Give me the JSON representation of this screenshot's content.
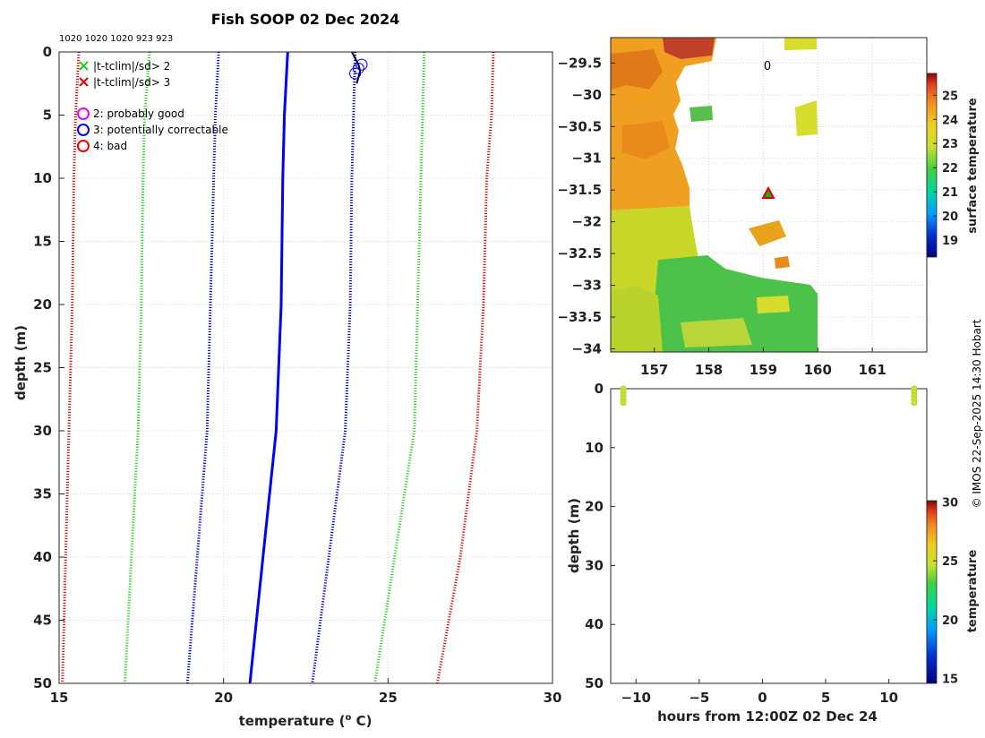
{
  "title": "Fish SOOP 02 Dec 2024",
  "copyright": "© IMOS 22-Sep-2025 14:30 Hobart",
  "chart_data": [
    {
      "id": "profile",
      "type": "line",
      "xlabel_main": "temperature (",
      "xlabel_sup": "o",
      "xlabel_tail": " C)",
      "ylabel": "depth (m)",
      "xlim": [
        15,
        30
      ],
      "ylim": [
        50,
        0
      ],
      "xticks": [
        15,
        20,
        25,
        30
      ],
      "yticks": [
        0,
        5,
        10,
        15,
        20,
        25,
        30,
        35,
        40,
        45,
        50
      ],
      "grid": true,
      "top_annotation": "1020 1020 1020 923 923",
      "legend": [
        {
          "label": "|t-tclim|/sd> 2",
          "marker": "x",
          "color": "#22cc22"
        },
        {
          "label": "|t-tclim|/sd> 3",
          "marker": "x",
          "color": "#dd0000"
        },
        {
          "label": "2: probably good",
          "marker": "o",
          "color": "#ee00ee"
        },
        {
          "label": "3: potentially correctable",
          "marker": "o",
          "color": "#0000ee"
        },
        {
          "label": "4: bad",
          "marker": "o",
          "color": "#ee0000"
        }
      ],
      "series": [
        {
          "name": "clim-3sd-low",
          "style": "dotted",
          "color": "#cc1111",
          "points": [
            [
              15.6,
              0
            ],
            [
              15.5,
              5
            ],
            [
              15.45,
              10
            ],
            [
              15.4,
              20
            ],
            [
              15.3,
              30
            ],
            [
              15.2,
              40
            ],
            [
              15.1,
              50
            ]
          ]
        },
        {
          "name": "clim-2sd-low",
          "style": "dotted",
          "color": "#33cc33",
          "points": [
            [
              17.75,
              0
            ],
            [
              17.6,
              5
            ],
            [
              17.55,
              10
            ],
            [
              17.5,
              20
            ],
            [
              17.4,
              30
            ],
            [
              17.2,
              40
            ],
            [
              17.0,
              50
            ]
          ]
        },
        {
          "name": "clim-1sd-low",
          "style": "dotted",
          "color": "#0000cc",
          "points": [
            [
              19.85,
              0
            ],
            [
              19.75,
              5
            ],
            [
              19.7,
              10
            ],
            [
              19.6,
              20
            ],
            [
              19.5,
              30
            ],
            [
              19.2,
              40
            ],
            [
              18.9,
              50
            ]
          ]
        },
        {
          "name": "clim-mean",
          "style": "solid",
          "color": "#0000ee",
          "points": [
            [
              21.95,
              0
            ],
            [
              21.85,
              5
            ],
            [
              21.8,
              10
            ],
            [
              21.75,
              20
            ],
            [
              21.6,
              30
            ],
            [
              21.2,
              40
            ],
            [
              20.8,
              50
            ]
          ]
        },
        {
          "name": "clim-1sd-high",
          "style": "dotted",
          "color": "#0000cc",
          "points": [
            [
              24.0,
              0
            ],
            [
              23.95,
              5
            ],
            [
              23.9,
              10
            ],
            [
              23.85,
              20
            ],
            [
              23.7,
              30
            ],
            [
              23.2,
              40
            ],
            [
              22.7,
              50
            ]
          ]
        },
        {
          "name": "clim-2sd-high",
          "style": "dotted",
          "color": "#33cc33",
          "points": [
            [
              26.1,
              0
            ],
            [
              26.05,
              5
            ],
            [
              26.0,
              10
            ],
            [
              25.9,
              20
            ],
            [
              25.8,
              30
            ],
            [
              25.2,
              40
            ],
            [
              24.6,
              50
            ]
          ]
        },
        {
          "name": "clim-3sd-high",
          "style": "dotted",
          "color": "#cc1111",
          "points": [
            [
              28.2,
              0
            ],
            [
              28.15,
              5
            ],
            [
              28.0,
              10
            ],
            [
              27.9,
              20
            ],
            [
              27.7,
              30
            ],
            [
              27.2,
              40
            ],
            [
              26.5,
              50
            ]
          ]
        },
        {
          "name": "observed",
          "style": "solid",
          "color": "#000000",
          "points": [
            [
              23.9,
              0
            ],
            [
              24.0,
              0.5
            ],
            [
              24.1,
              1.0
            ],
            [
              24.15,
              1.5
            ],
            [
              24.1,
              2.0
            ],
            [
              24.05,
              2.5
            ]
          ]
        }
      ],
      "flags": [
        {
          "label": "3",
          "points": [
            [
              24.2,
              1.0
            ],
            [
              24.1,
              1.3
            ],
            [
              24.0,
              1.7
            ]
          ]
        }
      ]
    },
    {
      "id": "sst-map",
      "type": "heatmap",
      "xlim": [
        156.2,
        162.0
      ],
      "ylim": [
        -34.05,
        -29.1
      ],
      "xticks": [
        157,
        158,
        159,
        160,
        161
      ],
      "yticks": [
        -29.5,
        -30,
        -30.5,
        -31,
        -31.5,
        -32,
        -32.5,
        -33,
        -33.5,
        -34
      ],
      "grid": true,
      "station_marker": {
        "lon": 159.05,
        "lat": -31.5
      },
      "map_annotation": {
        "text": "0",
        "lon": 159.0,
        "lat": -29.5
      },
      "colorbar": {
        "label": "surface temperature",
        "range": [
          18.3,
          25.9
        ],
        "ticks": [
          19,
          20,
          21,
          22,
          23,
          24,
          25
        ]
      }
    },
    {
      "id": "time-depth",
      "type": "scatter",
      "xlabel": "hours from 12:00Z 02 Dec 24",
      "ylabel": "depth (m)",
      "xlim": [
        -12,
        13
      ],
      "ylim": [
        50,
        0
      ],
      "xticks": [
        -10,
        -5,
        0,
        5,
        10
      ],
      "yticks": [
        0,
        10,
        20,
        30,
        40,
        50
      ],
      "points": [
        {
          "x": -11,
          "depth": 0,
          "temp": 24.2
        },
        {
          "x": -11,
          "depth": 0.6,
          "temp": 24.2
        },
        {
          "x": -11,
          "depth": 1.2,
          "temp": 24.1
        },
        {
          "x": -11,
          "depth": 1.8,
          "temp": 24.1
        },
        {
          "x": -11,
          "depth": 2.4,
          "temp": 24.0
        },
        {
          "x": 12,
          "depth": 0,
          "temp": 24.2
        },
        {
          "x": 12,
          "depth": 0.6,
          "temp": 24.2
        },
        {
          "x": 12,
          "depth": 1.2,
          "temp": 24.1
        },
        {
          "x": 12,
          "depth": 1.8,
          "temp": 24.1
        },
        {
          "x": 12,
          "depth": 2.4,
          "temp": 24.0
        }
      ],
      "colorbar": {
        "label": "temperature",
        "range": [
          14.6,
          30.1
        ],
        "ticks": [
          15,
          20,
          25,
          30
        ]
      }
    }
  ]
}
